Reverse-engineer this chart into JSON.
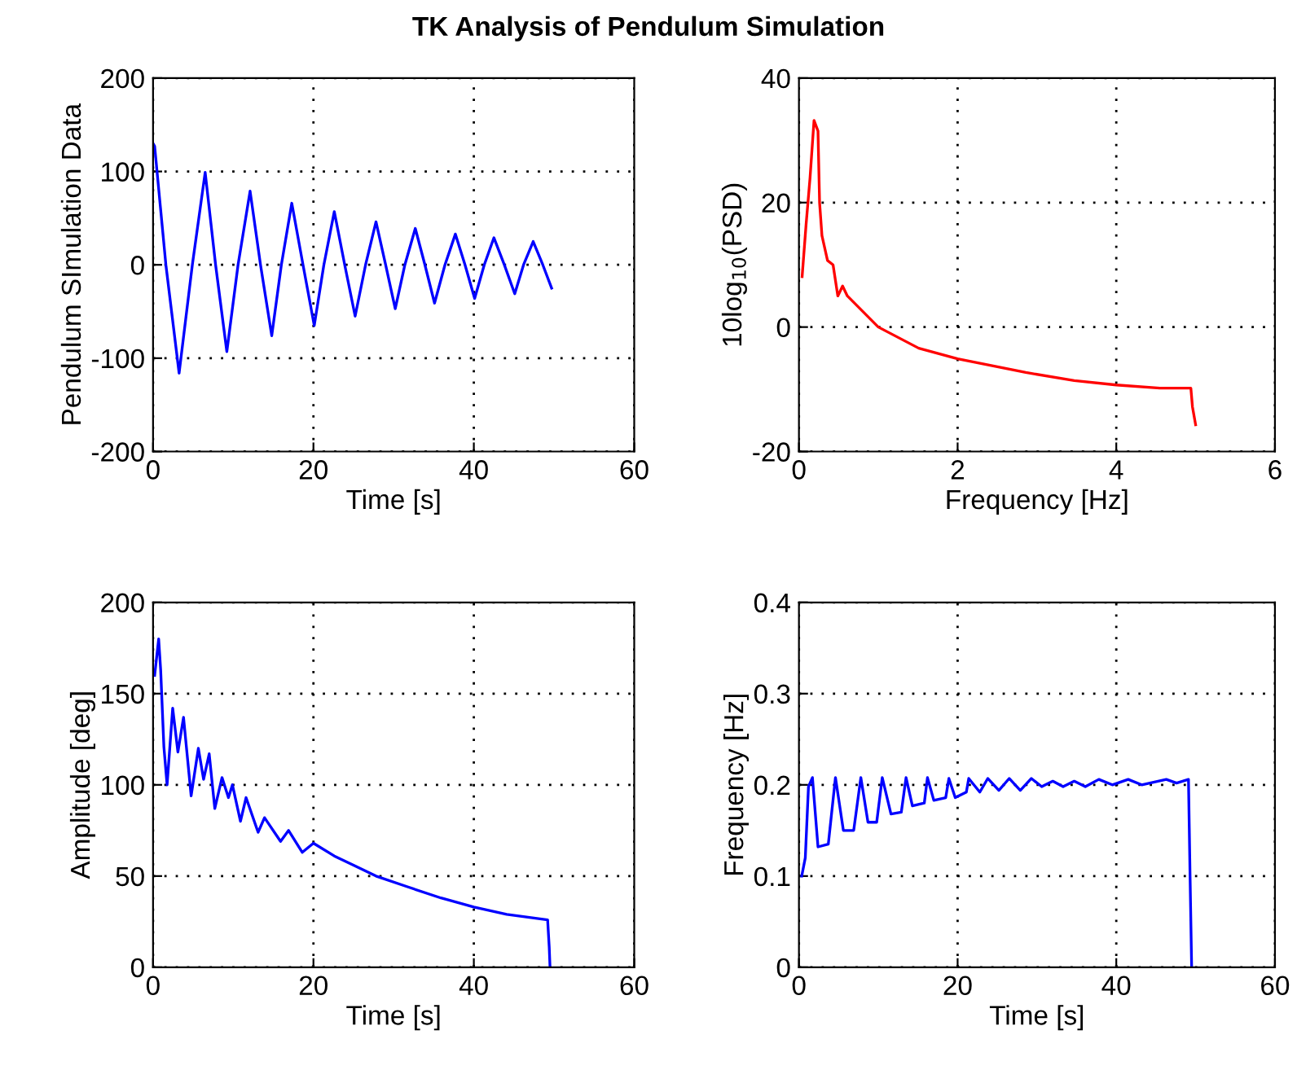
{
  "chart_data": [
    {
      "type": "line",
      "title": "TK Analysis of Pendulum Simulation",
      "xlabel": "Time [s]",
      "ylabel": "Pendulum SImulation Data",
      "xlim": [
        0,
        60
      ],
      "ylim": [
        -200,
        200
      ],
      "xticks": [
        0,
        20,
        40,
        60
      ],
      "yticks": [
        -200,
        -100,
        0,
        100,
        200
      ],
      "grid": true,
      "marker": "none",
      "line_style": "solid",
      "series": [
        {
          "color": "#0000ff",
          "x": [
            0,
            0.2,
            1.6,
            3.25,
            4.9,
            6.5,
            7.8,
            9.2,
            10.6,
            12.1,
            13.4,
            14.8,
            16.0,
            17.3,
            18.7,
            20.1,
            21.3,
            22.6,
            23.9,
            25.2,
            26.5,
            27.8,
            29.0,
            30.2,
            31.4,
            32.7,
            33.9,
            35.1,
            36.4,
            37.7,
            38.9,
            40.1,
            41.3,
            42.5,
            43.8,
            45.1,
            46.2,
            47.4,
            48.6,
            49.7
          ],
          "values": [
            130,
            127,
            0,
            -116,
            0,
            99,
            0,
            -93,
            0,
            79,
            0,
            -76,
            0,
            66,
            0,
            -65,
            0,
            57,
            0,
            -55,
            0,
            46,
            0,
            -47,
            0,
            39,
            0,
            -41,
            0,
            33,
            0,
            -36,
            0,
            29,
            0,
            -31,
            0,
            25,
            0,
            -25
          ]
        }
      ]
    },
    {
      "type": "line",
      "xlabel": "Frequency [Hz]",
      "ylabel": "10log$_{10}$(PSD)",
      "xlim": [
        0,
        6
      ],
      "ylim": [
        -20,
        40
      ],
      "xticks": [
        0,
        2,
        4,
        6
      ],
      "yticks": [
        -20,
        0,
        20,
        40
      ],
      "grid": true,
      "marker": "none",
      "line_style": "solid",
      "series": [
        {
          "color": "#ff0000",
          "x": [
            0.04,
            0.09,
            0.14,
            0.19,
            0.24,
            0.26,
            0.29,
            0.36,
            0.43,
            0.49,
            0.55,
            0.61,
            1.0,
            1.51,
            2.0,
            2.86,
            3.47,
            4.0,
            4.55,
            4.94,
            4.96,
            5.0
          ],
          "values": [
            8.1,
            16.5,
            24,
            33.2,
            31.5,
            20,
            14.7,
            10.7,
            10,
            5,
            6.6,
            5,
            0,
            -3.4,
            -5.1,
            -7.3,
            -8.6,
            -9.3,
            -9.8,
            -9.8,
            -12.8,
            -15.7
          ]
        }
      ]
    },
    {
      "type": "line",
      "xlabel": "Time [s]",
      "ylabel": "Amplitude [deg]",
      "xlim": [
        0,
        60
      ],
      "ylim": [
        0,
        200
      ],
      "xticks": [
        0,
        20,
        40,
        60
      ],
      "yticks": [
        0,
        50,
        100,
        150,
        200
      ],
      "grid": true,
      "marker": "none",
      "line_style": "solid",
      "series": [
        {
          "color": "#0000ff",
          "x": [
            0.2,
            0.7,
            0.95,
            1.35,
            1.75,
            2.45,
            3.1,
            3.8,
            4.75,
            5.65,
            6.3,
            7.0,
            7.7,
            8.6,
            9.4,
            9.9,
            10.9,
            11.6,
            13.1,
            13.9,
            15.9,
            16.9,
            18.6,
            20,
            22.6,
            25,
            27.8,
            31.8,
            35.9,
            40,
            44.1,
            49.2,
            49.4,
            49.5
          ],
          "values": [
            160,
            180,
            163,
            121,
            100,
            142,
            118,
            137,
            94,
            120,
            103,
            117,
            87,
            104,
            93,
            100,
            80,
            93,
            74,
            82,
            69,
            75,
            63,
            68,
            61,
            56,
            50,
            44,
            38,
            33,
            29,
            26,
            11,
            0
          ]
        }
      ]
    },
    {
      "type": "line",
      "xlabel": "Time [s]",
      "ylabel": "Frequency [Hz]",
      "xlim": [
        0,
        60
      ],
      "ylim": [
        0,
        0.4
      ],
      "xticks": [
        0,
        20,
        40,
        60
      ],
      "yticks": [
        0,
        0.1,
        0.2,
        0.3,
        0.4
      ],
      "grid": true,
      "marker": "none",
      "line_style": "solid",
      "series": [
        {
          "color": "#0000ff",
          "x": [
            0.35,
            0.8,
            1.2,
            1.7,
            2.4,
            3.7,
            4.6,
            5.6,
            6.9,
            7.8,
            8.7,
            9.8,
            10.5,
            11.6,
            12.9,
            13.5,
            14.3,
            15.8,
            16.2,
            17.0,
            18.5,
            18.9,
            19.7,
            21.1,
            21.4,
            22.8,
            23.8,
            25.2,
            26.5,
            27.9,
            29.3,
            30.6,
            32.0,
            33.3,
            34.7,
            36.1,
            37.8,
            39.5,
            41.5,
            43.2,
            46.3,
            47.6,
            49.1,
            49.3,
            49.5
          ],
          "values": [
            0.1,
            0.12,
            0.198,
            0.208,
            0.132,
            0.135,
            0.208,
            0.15,
            0.15,
            0.208,
            0.159,
            0.159,
            0.208,
            0.168,
            0.17,
            0.208,
            0.177,
            0.18,
            0.208,
            0.183,
            0.186,
            0.207,
            0.186,
            0.192,
            0.207,
            0.192,
            0.207,
            0.194,
            0.207,
            0.194,
            0.207,
            0.198,
            0.204,
            0.198,
            0.204,
            0.198,
            0.206,
            0.2,
            0.206,
            0.2,
            0.206,
            0.202,
            0.206,
            0.1,
            0
          ]
        }
      ]
    }
  ]
}
